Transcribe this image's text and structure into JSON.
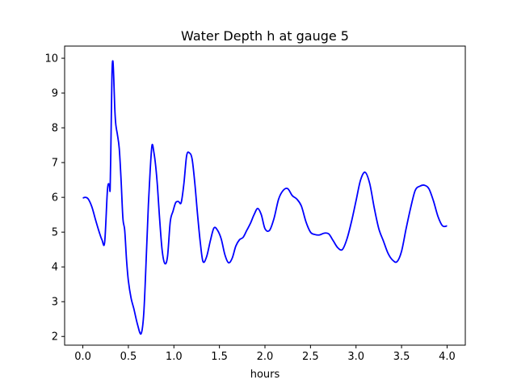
{
  "chart_data": {
    "type": "line",
    "title": "Water Depth h at gauge 5",
    "xlabel": "hours",
    "ylabel": "",
    "xlim": [
      -0.2,
      4.2
    ],
    "ylim": [
      1.75,
      10.35
    ],
    "xticks": [
      0.0,
      0.5,
      1.0,
      1.5,
      2.0,
      2.5,
      3.0,
      3.5,
      4.0
    ],
    "xtick_labels": [
      "0.0",
      "0.5",
      "1.0",
      "1.5",
      "2.0",
      "2.5",
      "3.0",
      "3.5",
      "4.0"
    ],
    "yticks": [
      2,
      3,
      4,
      5,
      6,
      7,
      8,
      9,
      10
    ],
    "ytick_labels": [
      "2",
      "3",
      "4",
      "5",
      "6",
      "7",
      "8",
      "9",
      "10"
    ],
    "grid": false,
    "series": [
      {
        "color": "#0000ff",
        "x": [
          0.0,
          0.03,
          0.06,
          0.1,
          0.14,
          0.18,
          0.21,
          0.24,
          0.27,
          0.29,
          0.3,
          0.31,
          0.32,
          0.33,
          0.34,
          0.35,
          0.36,
          0.37,
          0.38,
          0.4,
          0.42,
          0.44,
          0.46,
          0.48,
          0.5,
          0.53,
          0.56,
          0.6,
          0.64,
          0.67,
          0.7,
          0.72,
          0.74,
          0.76,
          0.78,
          0.8,
          0.82,
          0.84,
          0.87,
          0.9,
          0.93,
          0.96,
          0.99,
          1.02,
          1.05,
          1.08,
          1.11,
          1.14,
          1.17,
          1.2,
          1.23,
          1.26,
          1.29,
          1.32,
          1.36,
          1.4,
          1.44,
          1.48,
          1.52,
          1.56,
          1.6,
          1.64,
          1.68,
          1.72,
          1.76,
          1.8,
          1.84,
          1.88,
          1.92,
          1.96,
          2.0,
          2.05,
          2.1,
          2.15,
          2.2,
          2.25,
          2.3,
          2.35,
          2.4,
          2.45,
          2.5,
          2.55,
          2.6,
          2.65,
          2.7,
          2.75,
          2.8,
          2.85,
          2.9,
          2.95,
          3.0,
          3.05,
          3.1,
          3.15,
          3.2,
          3.25,
          3.3,
          3.35,
          3.4,
          3.45,
          3.5,
          3.55,
          3.6,
          3.65,
          3.7,
          3.75,
          3.8,
          3.85,
          3.9,
          3.95,
          4.0
        ],
        "y": [
          5.98,
          6.0,
          5.95,
          5.72,
          5.35,
          5.0,
          4.78,
          4.72,
          6.2,
          6.38,
          6.25,
          7.8,
          9.55,
          9.92,
          9.4,
          8.6,
          8.15,
          7.95,
          7.8,
          7.4,
          6.5,
          5.4,
          5.05,
          4.2,
          3.6,
          3.1,
          2.8,
          2.35,
          2.08,
          2.7,
          4.5,
          5.8,
          6.8,
          7.5,
          7.3,
          6.9,
          6.3,
          5.5,
          4.5,
          4.1,
          4.3,
          5.3,
          5.6,
          5.85,
          5.88,
          5.85,
          6.4,
          7.2,
          7.28,
          7.1,
          6.4,
          5.5,
          4.7,
          4.15,
          4.3,
          4.75,
          5.12,
          5.05,
          4.8,
          4.35,
          4.12,
          4.25,
          4.6,
          4.78,
          4.85,
          5.05,
          5.25,
          5.5,
          5.68,
          5.5,
          5.1,
          5.05,
          5.4,
          5.95,
          6.2,
          6.25,
          6.05,
          5.95,
          5.75,
          5.3,
          5.0,
          4.93,
          4.92,
          4.97,
          4.95,
          4.75,
          4.55,
          4.5,
          4.8,
          5.3,
          5.9,
          6.5,
          6.72,
          6.4,
          5.7,
          5.1,
          4.75,
          4.4,
          4.2,
          4.15,
          4.45,
          5.1,
          5.7,
          6.2,
          6.32,
          6.35,
          6.25,
          5.9,
          5.45,
          5.18,
          5.18
        ]
      }
    ]
  }
}
